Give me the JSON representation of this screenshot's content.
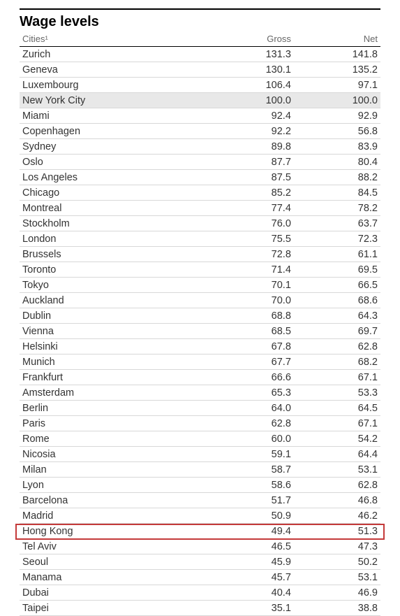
{
  "table": {
    "title": "Wage levels",
    "columns": [
      "Cities¹",
      "Gross",
      "Net"
    ],
    "highlight_bg_color": "#e8e8e8",
    "box_border_color": "#c43a3a",
    "rows": [
      {
        "city": "Zurich",
        "gross": "131.3",
        "net": "141.8"
      },
      {
        "city": "Geneva",
        "gross": "130.1",
        "net": "135.2"
      },
      {
        "city": "Luxembourg",
        "gross": "106.4",
        "net": "97.1"
      },
      {
        "city": "New York City",
        "gross": "100.0",
        "net": "100.0",
        "highlight": true
      },
      {
        "city": "Miami",
        "gross": "92.4",
        "net": "92.9"
      },
      {
        "city": "Copenhagen",
        "gross": "92.2",
        "net": "56.8"
      },
      {
        "city": "Sydney",
        "gross": "89.8",
        "net": "83.9"
      },
      {
        "city": "Oslo",
        "gross": "87.7",
        "net": "80.4"
      },
      {
        "city": "Los Angeles",
        "gross": "87.5",
        "net": "88.2"
      },
      {
        "city": "Chicago",
        "gross": "85.2",
        "net": "84.5"
      },
      {
        "city": "Montreal",
        "gross": "77.4",
        "net": "78.2"
      },
      {
        "city": "Stockholm",
        "gross": "76.0",
        "net": "63.7"
      },
      {
        "city": "London",
        "gross": "75.5",
        "net": "72.3"
      },
      {
        "city": "Brussels",
        "gross": "72.8",
        "net": "61.1"
      },
      {
        "city": "Toronto",
        "gross": "71.4",
        "net": "69.5"
      },
      {
        "city": "Tokyo",
        "gross": "70.1",
        "net": "66.5"
      },
      {
        "city": "Auckland",
        "gross": "70.0",
        "net": "68.6"
      },
      {
        "city": "Dublin",
        "gross": "68.8",
        "net": "64.3"
      },
      {
        "city": "Vienna",
        "gross": "68.5",
        "net": "69.7"
      },
      {
        "city": "Helsinki",
        "gross": "67.8",
        "net": "62.8"
      },
      {
        "city": "Munich",
        "gross": "67.7",
        "net": "68.2"
      },
      {
        "city": "Frankfurt",
        "gross": "66.6",
        "net": "67.1"
      },
      {
        "city": "Amsterdam",
        "gross": "65.3",
        "net": "53.3"
      },
      {
        "city": "Berlin",
        "gross": "64.0",
        "net": "64.5"
      },
      {
        "city": "Paris",
        "gross": "62.8",
        "net": "67.1"
      },
      {
        "city": "Rome",
        "gross": "60.0",
        "net": "54.2"
      },
      {
        "city": "Nicosia",
        "gross": "59.1",
        "net": "64.4"
      },
      {
        "city": "Milan",
        "gross": "58.7",
        "net": "53.1"
      },
      {
        "city": "Lyon",
        "gross": "58.6",
        "net": "62.8"
      },
      {
        "city": "Barcelona",
        "gross": "51.7",
        "net": "46.8"
      },
      {
        "city": "Madrid",
        "gross": "50.9",
        "net": "46.2"
      },
      {
        "city": "Hong Kong",
        "gross": "49.4",
        "net": "51.3",
        "boxed": true
      },
      {
        "city": "Tel Aviv",
        "gross": "46.5",
        "net": "47.3"
      },
      {
        "city": "Seoul",
        "gross": "45.9",
        "net": "50.2"
      },
      {
        "city": "Manama",
        "gross": "45.7",
        "net": "53.1"
      },
      {
        "city": "Dubai",
        "gross": "40.4",
        "net": "46.9"
      },
      {
        "city": "Taipei",
        "gross": "35.1",
        "net": "38.8"
      }
    ]
  }
}
